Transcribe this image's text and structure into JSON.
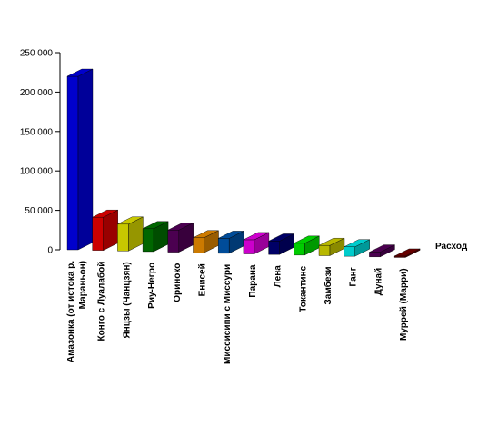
{
  "chart_data": {
    "type": "bar",
    "three_d": true,
    "categories": [
      "Амазонка (от истока р. Мараньон)",
      "Конго с Луалабой",
      "Янцзы (Чанцзян)",
      "Риу-Негро",
      "Ориноко",
      "Енисей",
      "Миссисипи с Миссури",
      "Парана",
      "Лена",
      "Токантинс",
      "Замбези",
      "Ганг",
      "Дунай",
      "Муррей (Марри)"
    ],
    "series": [
      {
        "name": "Расход",
        "values": [
          220000,
          42000,
          34000,
          29000,
          28000,
          19000,
          19000,
          18000,
          17000,
          15000,
          13000,
          12000,
          6000,
          500
        ]
      }
    ],
    "colors": [
      "#0000cc",
      "#cc0000",
      "#c8c800",
      "#006600",
      "#4b0050",
      "#cc7a00",
      "#004c99",
      "#cc00cc",
      "#000066",
      "#00cc00",
      "#b8b800",
      "#00cccc",
      "#4b0050",
      "#660000"
    ],
    "yticks": [
      "0",
      "50 000",
      "100 000",
      "150 000",
      "200 000",
      "250 000"
    ],
    "ylim": [
      0,
      250000
    ],
    "xlabel": "",
    "ylabel": "",
    "title": "",
    "grid": false,
    "legend": "none"
  }
}
